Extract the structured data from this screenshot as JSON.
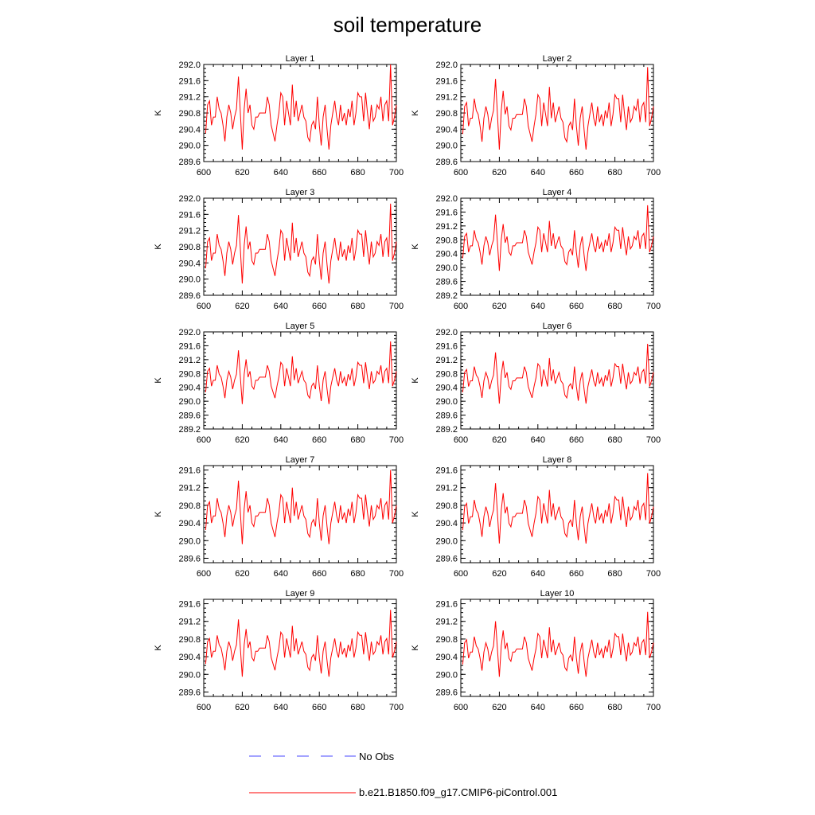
{
  "title": "soil temperature",
  "colors": {
    "model": "#ff0000",
    "obs": "#4a4aff",
    "axis": "#000000"
  },
  "legend": [
    {
      "label": "No Obs",
      "style": "dashed",
      "color": "#4a4aff"
    },
    {
      "label": "b.e21.B1850.f09_g17.CMIP6-piControl.001",
      "style": "solid",
      "color": "#ff0000"
    }
  ],
  "chart_data": [
    {
      "type": "line",
      "title": "Layer 1",
      "ylabel": "K",
      "xlim": [
        600,
        700
      ],
      "xticks": [
        600,
        620,
        640,
        660,
        680,
        700
      ],
      "ylim": [
        289.6,
        292.0
      ],
      "yticks": [
        289.6,
        290.0,
        290.4,
        290.8,
        291.2,
        291.6,
        292.0
      ],
      "ytick_labels": [
        "289.6",
        "290.0",
        "290.4",
        "290.8",
        "291.2",
        "291.6",
        "292.0"
      ],
      "offset": 0.0,
      "scale": 1.0
    },
    {
      "type": "line",
      "title": "Layer 2",
      "ylabel": "K",
      "xlim": [
        600,
        700
      ],
      "xticks": [
        600,
        620,
        640,
        660,
        680,
        700
      ],
      "ylim": [
        289.6,
        292.0
      ],
      "yticks": [
        289.6,
        290.0,
        290.4,
        290.8,
        291.2,
        291.6,
        292.0
      ],
      "ytick_labels": [
        "289.6",
        "290.0",
        "290.4",
        "290.8",
        "291.2",
        "291.6",
        "292.0"
      ],
      "offset": -0.03,
      "scale": 0.97
    },
    {
      "type": "line",
      "title": "Layer 3",
      "ylabel": "K",
      "xlim": [
        600,
        700
      ],
      "xticks": [
        600,
        620,
        640,
        660,
        680,
        700
      ],
      "ylim": [
        289.6,
        292.0
      ],
      "yticks": [
        289.6,
        290.0,
        290.4,
        290.8,
        291.2,
        291.6,
        292.0
      ],
      "ytick_labels": [
        "289.6",
        "290.0",
        "290.4",
        "290.8",
        "291.2",
        "291.6",
        "292.0"
      ],
      "offset": -0.06,
      "scale": 0.94
    },
    {
      "type": "line",
      "title": "Layer 4",
      "ylabel": "K",
      "xlim": [
        600,
        700
      ],
      "xticks": [
        600,
        620,
        640,
        660,
        680,
        700
      ],
      "ylim": [
        289.2,
        292.0
      ],
      "yticks": [
        289.2,
        289.6,
        290.0,
        290.4,
        290.8,
        291.2,
        291.6,
        292.0
      ],
      "ytick_labels": [
        "289.2",
        "289.6",
        "290.0",
        "290.4",
        "290.8",
        "291.2",
        "291.6",
        "292.0"
      ],
      "offset": -0.08,
      "scale": 0.9
    },
    {
      "type": "line",
      "title": "Layer 5",
      "ylabel": "K",
      "xlim": [
        600,
        700
      ],
      "xticks": [
        600,
        620,
        640,
        660,
        680,
        700
      ],
      "ylim": [
        289.2,
        292.0
      ],
      "yticks": [
        289.2,
        289.6,
        290.0,
        290.4,
        290.8,
        291.2,
        291.6,
        292.0
      ],
      "ytick_labels": [
        "289.2",
        "289.6",
        "290.0",
        "290.4",
        "290.8",
        "291.2",
        "291.6",
        "292.0"
      ],
      "offset": -0.1,
      "scale": 0.86
    },
    {
      "type": "line",
      "title": "Layer 6",
      "ylabel": "K",
      "xlim": [
        600,
        700
      ],
      "xticks": [
        600,
        620,
        640,
        660,
        680,
        700
      ],
      "ylim": [
        289.2,
        292.0
      ],
      "yticks": [
        289.2,
        289.6,
        290.0,
        290.4,
        290.8,
        291.2,
        291.6,
        292.0
      ],
      "ytick_labels": [
        "289.2",
        "289.6",
        "290.0",
        "290.4",
        "290.8",
        "291.2",
        "291.6",
        "292.0"
      ],
      "offset": -0.12,
      "scale": 0.82
    },
    {
      "type": "line",
      "title": "Layer 7",
      "ylabel": "K",
      "xlim": [
        600,
        700
      ],
      "xticks": [
        600,
        620,
        640,
        660,
        680,
        700
      ],
      "ylim": [
        289.5,
        291.7
      ],
      "yticks": [
        289.6,
        290.0,
        290.4,
        290.8,
        291.2,
        291.6
      ],
      "ytick_labels": [
        "289.6",
        "290.0",
        "290.4",
        "290.8",
        "291.2",
        "291.6"
      ],
      "offset": -0.15,
      "scale": 0.8
    },
    {
      "type": "line",
      "title": "Layer 8",
      "ylabel": "K",
      "xlim": [
        600,
        700
      ],
      "xticks": [
        600,
        620,
        640,
        660,
        680,
        700
      ],
      "ylim": [
        289.5,
        291.7
      ],
      "yticks": [
        289.6,
        290.0,
        290.4,
        290.8,
        291.2,
        291.6
      ],
      "ytick_labels": [
        "289.6",
        "290.0",
        "290.4",
        "290.8",
        "291.2",
        "291.6"
      ],
      "offset": -0.17,
      "scale": 0.76
    },
    {
      "type": "line",
      "title": "Layer 9",
      "ylabel": "K",
      "xlim": [
        600,
        700
      ],
      "xticks": [
        600,
        620,
        640,
        660,
        680,
        700
      ],
      "ylim": [
        289.5,
        291.7
      ],
      "yticks": [
        289.6,
        290.0,
        290.4,
        290.8,
        291.2,
        291.6
      ],
      "ytick_labels": [
        "289.6",
        "290.0",
        "290.4",
        "290.8",
        "291.2",
        "291.6"
      ],
      "offset": -0.19,
      "scale": 0.72
    },
    {
      "type": "line",
      "title": "Layer 10",
      "ylabel": "K",
      "xlim": [
        600,
        700
      ],
      "xticks": [
        600,
        620,
        640,
        660,
        680,
        700
      ],
      "ylim": [
        289.5,
        291.7
      ],
      "yticks": [
        289.6,
        290.0,
        290.4,
        290.8,
        291.2,
        291.6
      ],
      "ytick_labels": [
        "289.6",
        "290.0",
        "290.4",
        "290.8",
        "291.2",
        "291.6"
      ],
      "offset": -0.21,
      "scale": 0.7
    }
  ],
  "series_base": {
    "name": "b.e21.B1850.f09_g17.CMIP6-piControl.001",
    "x_start": 601,
    "x_step": 1,
    "values": [
      290.3,
      291.0,
      291.1,
      290.5,
      290.7,
      290.7,
      291.2,
      290.9,
      290.8,
      290.5,
      290.1,
      290.7,
      291.0,
      290.8,
      290.4,
      290.7,
      290.9,
      291.7,
      290.8,
      289.9,
      290.9,
      291.4,
      290.8,
      291.0,
      290.5,
      290.4,
      290.7,
      290.7,
      290.8,
      290.8,
      290.8,
      290.8,
      291.2,
      291.0,
      290.5,
      290.3,
      290.1,
      290.5,
      290.8,
      291.3,
      291.2,
      290.5,
      291.1,
      290.8,
      290.5,
      291.5,
      290.7,
      291.1,
      290.6,
      290.8,
      291.0,
      290.7,
      290.6,
      290.2,
      290.1,
      290.5,
      290.6,
      290.4,
      291.2,
      290.5,
      290.0,
      290.7,
      291.0,
      290.4,
      289.9,
      290.5,
      290.8,
      291.1,
      290.7,
      290.5,
      291.0,
      290.6,
      290.8,
      290.5,
      290.9,
      290.7,
      291.1,
      290.5,
      290.8,
      291.3,
      291.2,
      291.2,
      290.6,
      291.3,
      290.8,
      290.4,
      291.0,
      290.6,
      290.7,
      291.0,
      290.9,
      291.2,
      290.6,
      291.0,
      291.1,
      290.6,
      292.0,
      290.5,
      290.7,
      291.0
    ]
  }
}
